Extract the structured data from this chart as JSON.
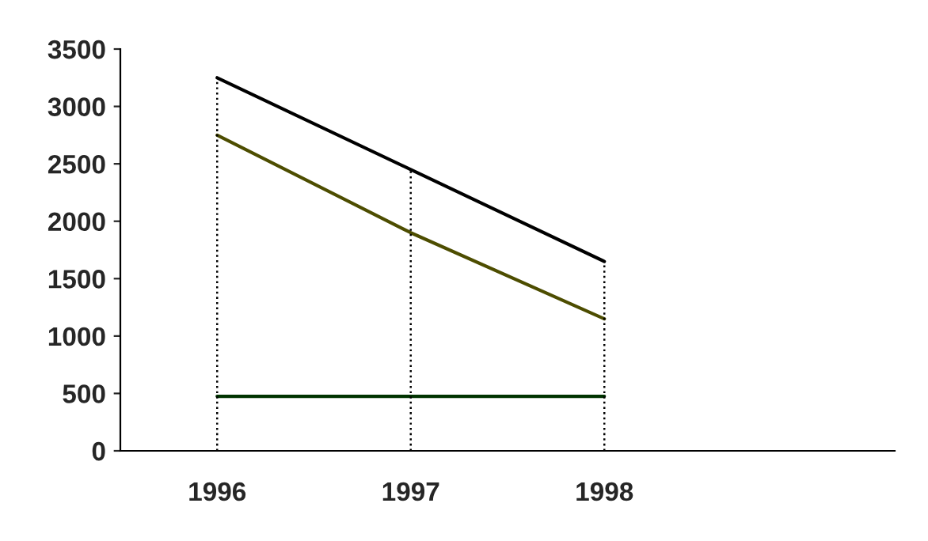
{
  "chart_data": {
    "type": "line",
    "categories": [
      "1996",
      "1997",
      "1998",
      null
    ],
    "series": [
      {
        "color": "#000000",
        "values": [
          3250,
          2450,
          1650,
          null
        ]
      },
      {
        "color": "#4d4d00",
        "values": [
          2750,
          1900,
          1150,
          null
        ]
      },
      {
        "color": "#003300",
        "values": [
          475,
          475,
          475,
          null
        ]
      }
    ],
    "ylim": [
      0,
      3500
    ],
    "yticks": [
      0,
      500,
      1000,
      1500,
      2000,
      2500,
      3000,
      3500
    ],
    "ref_lines": [
      {
        "axis": "x",
        "value": "1996",
        "color": "#000000",
        "line_style": "dotted"
      },
      {
        "axis": "x",
        "value": "1997",
        "color": "#000000",
        "line_style": "dotted"
      },
      {
        "axis": "x",
        "value": "1998",
        "color": "#000000",
        "line_style": "dotted"
      }
    ],
    "grid": false,
    "legend": false,
    "marker": "none",
    "line_style": "solid"
  }
}
